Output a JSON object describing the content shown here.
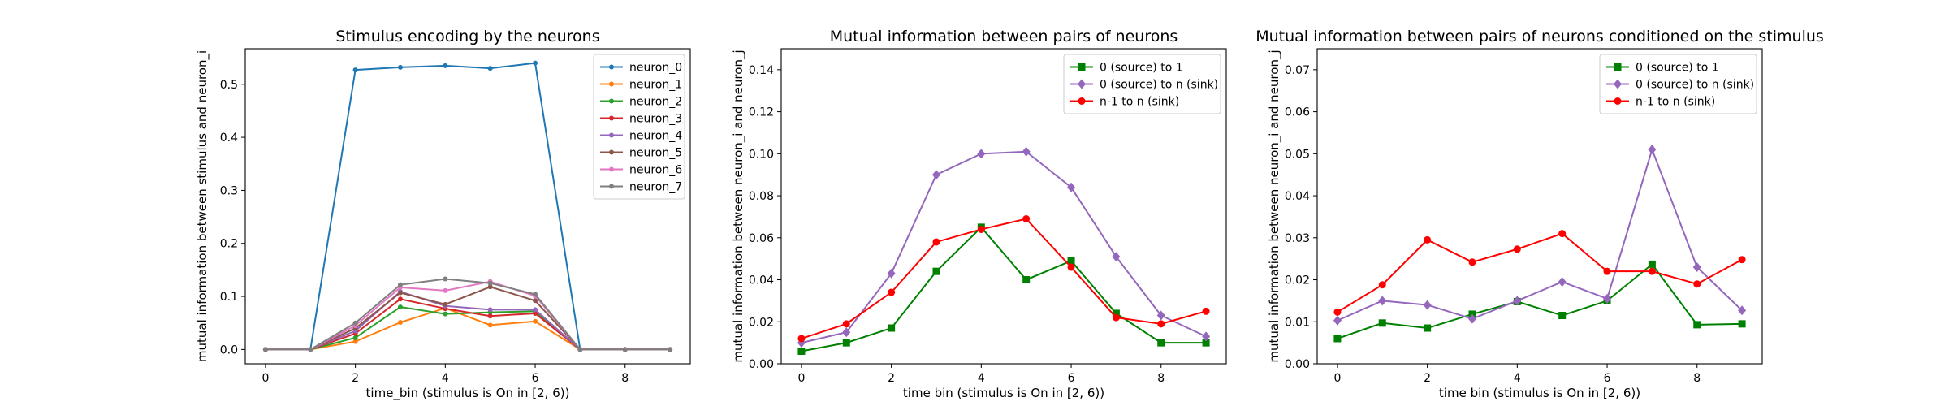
{
  "chart_data": [
    {
      "type": "line",
      "title": "Stimulus encoding by the neurons",
      "xlabel": "time_bin (stimulus is On in [2, 6))",
      "ylabel": "mutual information between stimulus and neuron_i",
      "xlim": [
        -0.45,
        9.45
      ],
      "ylim": [
        -0.027,
        0.567
      ],
      "xticks": [
        0,
        2,
        4,
        6,
        8
      ],
      "yticks": [
        0.0,
        0.1,
        0.2,
        0.3,
        0.4,
        0.5
      ],
      "ytick_decimals": 1,
      "grid": false,
      "legend": "upper right",
      "x": [
        0,
        1,
        2,
        3,
        4,
        5,
        6,
        7,
        8,
        9
      ],
      "series": [
        {
          "name": "neuron_0",
          "color": "#1f77b4",
          "marker": "dot",
          "values": [
            0,
            0,
            0.527,
            0.532,
            0.535,
            0.53,
            0.54,
            0,
            0,
            0
          ]
        },
        {
          "name": "neuron_1",
          "color": "#ff7f0e",
          "marker": "dot",
          "values": [
            0,
            0,
            0.015,
            0.051,
            0.078,
            0.046,
            0.053,
            0,
            0,
            0
          ]
        },
        {
          "name": "neuron_2",
          "color": "#2ca02c",
          "marker": "dot",
          "values": [
            0,
            0,
            0.022,
            0.08,
            0.067,
            0.07,
            0.072,
            0,
            0,
            0
          ]
        },
        {
          "name": "neuron_3",
          "color": "#d62728",
          "marker": "dot",
          "values": [
            0,
            0,
            0.03,
            0.095,
            0.077,
            0.063,
            0.068,
            0,
            0,
            0
          ]
        },
        {
          "name": "neuron_4",
          "color": "#9467bd",
          "marker": "dot",
          "values": [
            0,
            0,
            0.035,
            0.109,
            0.082,
            0.075,
            0.075,
            0,
            0,
            0
          ]
        },
        {
          "name": "neuron_5",
          "color": "#8c564b",
          "marker": "dot",
          "values": [
            0,
            0,
            0.04,
            0.107,
            0.085,
            0.118,
            0.092,
            0,
            0,
            0
          ]
        },
        {
          "name": "neuron_6",
          "color": "#e377c2",
          "marker": "dot",
          "values": [
            0,
            0,
            0.045,
            0.117,
            0.111,
            0.128,
            0.101,
            0,
            0,
            0
          ]
        },
        {
          "name": "neuron_7",
          "color": "#7f7f7f",
          "marker": "dot",
          "values": [
            0,
            0,
            0.05,
            0.122,
            0.133,
            0.125,
            0.104,
            0,
            0,
            0
          ]
        }
      ]
    },
    {
      "type": "line",
      "title": "Mutual information between pairs of neurons",
      "xlabel": "time bin (stimulus is On in [2, 6))",
      "ylabel": "mutual information between neuron_i and neuron_j",
      "xlim": [
        -0.45,
        9.45
      ],
      "ylim": [
        0.0,
        0.15
      ],
      "xticks": [
        0,
        2,
        4,
        6,
        8
      ],
      "yticks": [
        0.0,
        0.02,
        0.04,
        0.06,
        0.08,
        0.1,
        0.12,
        0.14
      ],
      "ytick_decimals": 2,
      "grid": false,
      "legend": "upper right",
      "x": [
        0,
        1,
        2,
        3,
        4,
        5,
        6,
        7,
        8,
        9
      ],
      "series": [
        {
          "name": "0 (source) to 1",
          "color": "#008000",
          "marker": "square",
          "values": [
            0.006,
            0.01,
            0.017,
            0.044,
            0.065,
            0.04,
            0.049,
            0.024,
            0.01,
            0.01
          ]
        },
        {
          "name": "0 (source) to n (sink)",
          "color": "#9467bd",
          "marker": "diamond",
          "values": [
            0.01,
            0.015,
            0.043,
            0.09,
            0.1,
            0.101,
            0.084,
            0.051,
            0.023,
            0.013
          ]
        },
        {
          "name": "n-1 to n (sink)",
          "color": "#ff0000",
          "marker": "dot",
          "values": [
            0.012,
            0.019,
            0.034,
            0.058,
            0.064,
            0.069,
            0.046,
            0.022,
            0.019,
            0.025
          ]
        }
      ]
    },
    {
      "type": "line",
      "title": "Mutual information between pairs of neurons conditioned on the stimulus",
      "xlabel": "time bin (stimulus is On in [2, 6))",
      "ylabel": "mutual information between neuron_i and neuron_j",
      "xlim": [
        -0.45,
        9.45
      ],
      "ylim": [
        0.0,
        0.075
      ],
      "xticks": [
        0,
        2,
        4,
        6,
        8
      ],
      "yticks": [
        0.0,
        0.01,
        0.02,
        0.03,
        0.04,
        0.05,
        0.06,
        0.07
      ],
      "ytick_decimals": 2,
      "grid": false,
      "legend": "upper right",
      "x": [
        0,
        1,
        2,
        3,
        4,
        5,
        6,
        7,
        8,
        9
      ],
      "series": [
        {
          "name": "0 (source) to 1",
          "color": "#008000",
          "marker": "square",
          "values": [
            0.006,
            0.0097,
            0.0085,
            0.0118,
            0.0148,
            0.0115,
            0.015,
            0.0237,
            0.0093,
            0.0095
          ]
        },
        {
          "name": "0 (source) to n (sink)",
          "color": "#9467bd",
          "marker": "diamond",
          "values": [
            0.0103,
            0.015,
            0.014,
            0.0107,
            0.015,
            0.0195,
            0.0155,
            0.051,
            0.023,
            0.0127
          ]
        },
        {
          "name": "n-1 to n (sink)",
          "color": "#ff0000",
          "marker": "dot",
          "values": [
            0.0123,
            0.0188,
            0.0295,
            0.0242,
            0.0273,
            0.031,
            0.022,
            0.022,
            0.019,
            0.0248
          ]
        }
      ]
    }
  ]
}
